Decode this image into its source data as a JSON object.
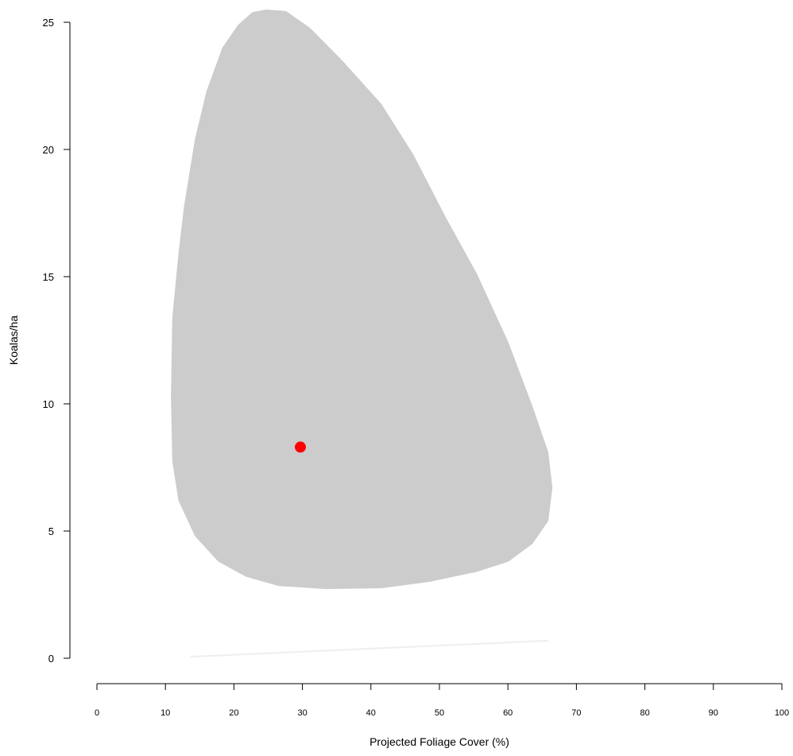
{
  "chart_data": {
    "type": "scatter",
    "xlabel": "Projected Foliage Cover (%)",
    "ylabel": "Koalas/ha",
    "xlim": [
      0,
      100
    ],
    "ylim": [
      0,
      25
    ],
    "xticks": [
      0,
      10,
      20,
      30,
      40,
      50,
      60,
      70,
      80,
      90,
      100
    ],
    "yticks": [
      0,
      5,
      10,
      15,
      20,
      25
    ],
    "series": [
      {
        "kind": "polygon",
        "color": "#cccccc",
        "x": [
          24.7,
          27.6,
          31.1,
          35.7,
          41.5,
          46.2,
          50.8,
          55.5,
          60.1,
          63.6,
          65.9,
          66.5,
          65.9,
          63.6,
          60.1,
          55.5,
          48.5,
          41.5,
          33.4,
          26.5,
          21.8,
          17.7,
          14.3,
          11.9,
          11.0,
          10.8,
          11.0,
          11.9,
          12.7,
          14.3,
          16.0,
          18.3,
          20.6,
          22.7
        ],
        "y": [
          25.5,
          25.44,
          24.78,
          23.53,
          21.8,
          19.8,
          17.4,
          15.1,
          12.4,
          9.9,
          8.1,
          6.7,
          5.4,
          4.5,
          3.8,
          3.4,
          3.0,
          2.75,
          2.72,
          2.84,
          3.2,
          3.8,
          4.8,
          6.2,
          7.75,
          10.25,
          13.4,
          15.9,
          17.75,
          20.4,
          22.3,
          24.0,
          24.9,
          25.4
        ]
      },
      {
        "kind": "line",
        "color": "#eeeeee",
        "x": [
          13.7,
          65.9
        ],
        "y": [
          0.06,
          0.69
        ]
      },
      {
        "kind": "point",
        "color": "#ff0000",
        "x": [
          29.7
        ],
        "y": [
          8.3
        ]
      }
    ]
  }
}
